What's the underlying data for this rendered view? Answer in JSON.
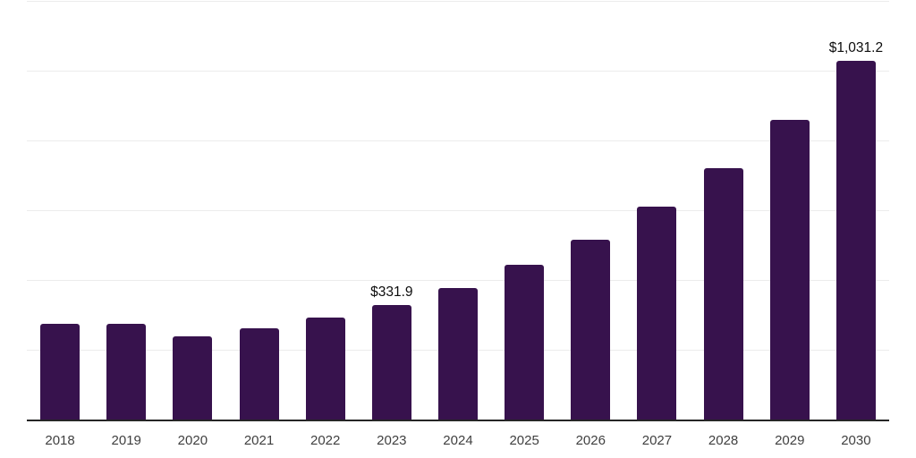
{
  "chart_data": {
    "type": "bar",
    "categories": [
      "2018",
      "2019",
      "2020",
      "2021",
      "2022",
      "2023",
      "2024",
      "2025",
      "2026",
      "2027",
      "2028",
      "2029",
      "2030"
    ],
    "values": [
      278,
      278,
      242,
      265,
      294,
      331.9,
      380,
      445,
      518,
      612,
      723,
      861,
      1031.2
    ],
    "value_labels": {
      "2023": "$331.9",
      "2030": "$1,031.2"
    },
    "title": "",
    "xlabel": "",
    "ylabel": "",
    "ylim": [
      0,
      1200
    ],
    "grid": true,
    "grid_step": 200,
    "legend": "none",
    "colors": {
      "bar": "#37124D",
      "axis_line": "#262626",
      "gridline": "#ececec",
      "tick_label": "#404040",
      "value_label": "#0d0d0d",
      "background": "#ffffff"
    }
  }
}
